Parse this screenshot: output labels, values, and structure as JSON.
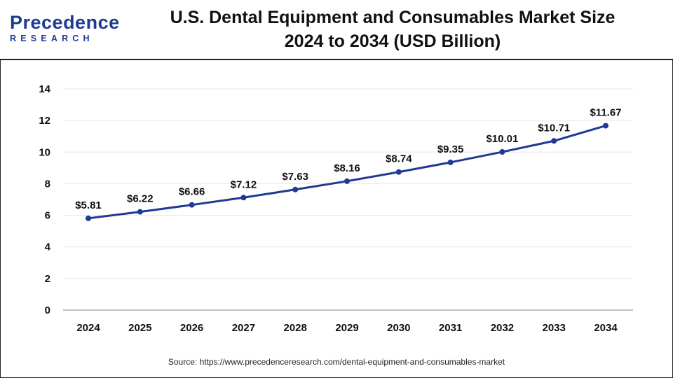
{
  "logo": {
    "line1": "Precedence",
    "line2": "RESEARCH"
  },
  "source": "Source: https://www.precedenceresearch.com/dental-equipment-and-consumables-market",
  "colors": {
    "line": "#1f3a93",
    "marker": "#1f3a93",
    "grid": "#e6e6e6",
    "axis": "#999999",
    "text": "#111111"
  },
  "chart_data": {
    "type": "line",
    "title": "U.S. Dental Equipment and Consumables Market Size",
    "subtitle": "2024 to 2034 (USD Billion)",
    "xlabel": "",
    "ylabel": "",
    "categories": [
      "2024",
      "2025",
      "2026",
      "2027",
      "2028",
      "2029",
      "2030",
      "2031",
      "2032",
      "2033",
      "2034"
    ],
    "series": [
      {
        "name": "Market Size (USD Billion)",
        "values": [
          5.81,
          6.22,
          6.66,
          7.12,
          7.63,
          8.16,
          8.74,
          9.35,
          10.01,
          10.71,
          11.67
        ],
        "labels": [
          "$5.81",
          "$6.22",
          "$6.66",
          "$7.12",
          "$7.63",
          "$8.16",
          "$8.74",
          "$9.35",
          "$10.01",
          "$10.71",
          "$11.67"
        ]
      }
    ],
    "ylim": [
      0,
      14
    ],
    "yticks": [
      0,
      2,
      4,
      6,
      8,
      10,
      12,
      14
    ],
    "grid": true,
    "legend": "none"
  }
}
